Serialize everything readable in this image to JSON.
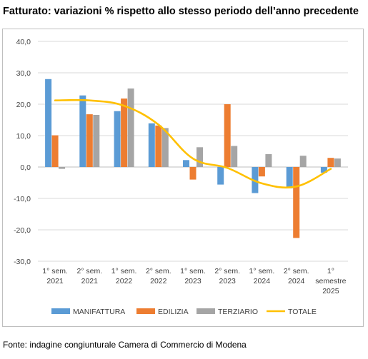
{
  "title": "Fatturato: variazioni % rispetto allo stesso periodo dell’anno precedente",
  "source": "Fonte: indagine congiunturale Camera di Commercio di Modena",
  "chart_data": {
    "type": "bar",
    "categories": [
      [
        "1° sem.",
        "2021"
      ],
      [
        "2° sem.",
        "2021"
      ],
      [
        "1° sem.",
        "2022"
      ],
      [
        "2° sem.",
        "2022"
      ],
      [
        "1° sem.",
        "2023"
      ],
      [
        "2° sem.",
        "2023"
      ],
      [
        "1° sem.",
        "2024"
      ],
      [
        "2° sem.",
        "2024"
      ],
      [
        "1°",
        "semestre",
        "2025"
      ]
    ],
    "y_ticks": [
      "40,0",
      "30,0",
      "20,0",
      "10,0",
      "0,0",
      "-10,0",
      "-20,0",
      "-30,0"
    ],
    "ylim": [
      -30,
      40
    ],
    "grid": true,
    "legend_position": "bottom",
    "series": [
      {
        "name": "MANIFATTURA",
        "type": "bar",
        "color": "#5b9bd5",
        "values": [
          28.0,
          22.8,
          17.8,
          13.9,
          2.2,
          -5.6,
          -8.3,
          -6.8,
          -1.8
        ]
      },
      {
        "name": "EDILIZIA",
        "type": "bar",
        "color": "#ed7d31",
        "values": [
          10.1,
          16.8,
          21.8,
          13.2,
          -4.0,
          20.0,
          -3.0,
          -22.6,
          2.9
        ]
      },
      {
        "name": "TERZIARIO",
        "type": "bar",
        "color": "#a5a5a5",
        "values": [
          -0.6,
          16.6,
          25.0,
          12.4,
          6.3,
          6.7,
          4.1,
          3.6,
          2.7
        ]
      },
      {
        "name": "TOTALE",
        "type": "line",
        "color": "#ffc000",
        "values": [
          21.2,
          21.2,
          19.5,
          13.5,
          2.7,
          -0.3,
          -5.2,
          -6.2,
          -0.6
        ]
      }
    ]
  }
}
